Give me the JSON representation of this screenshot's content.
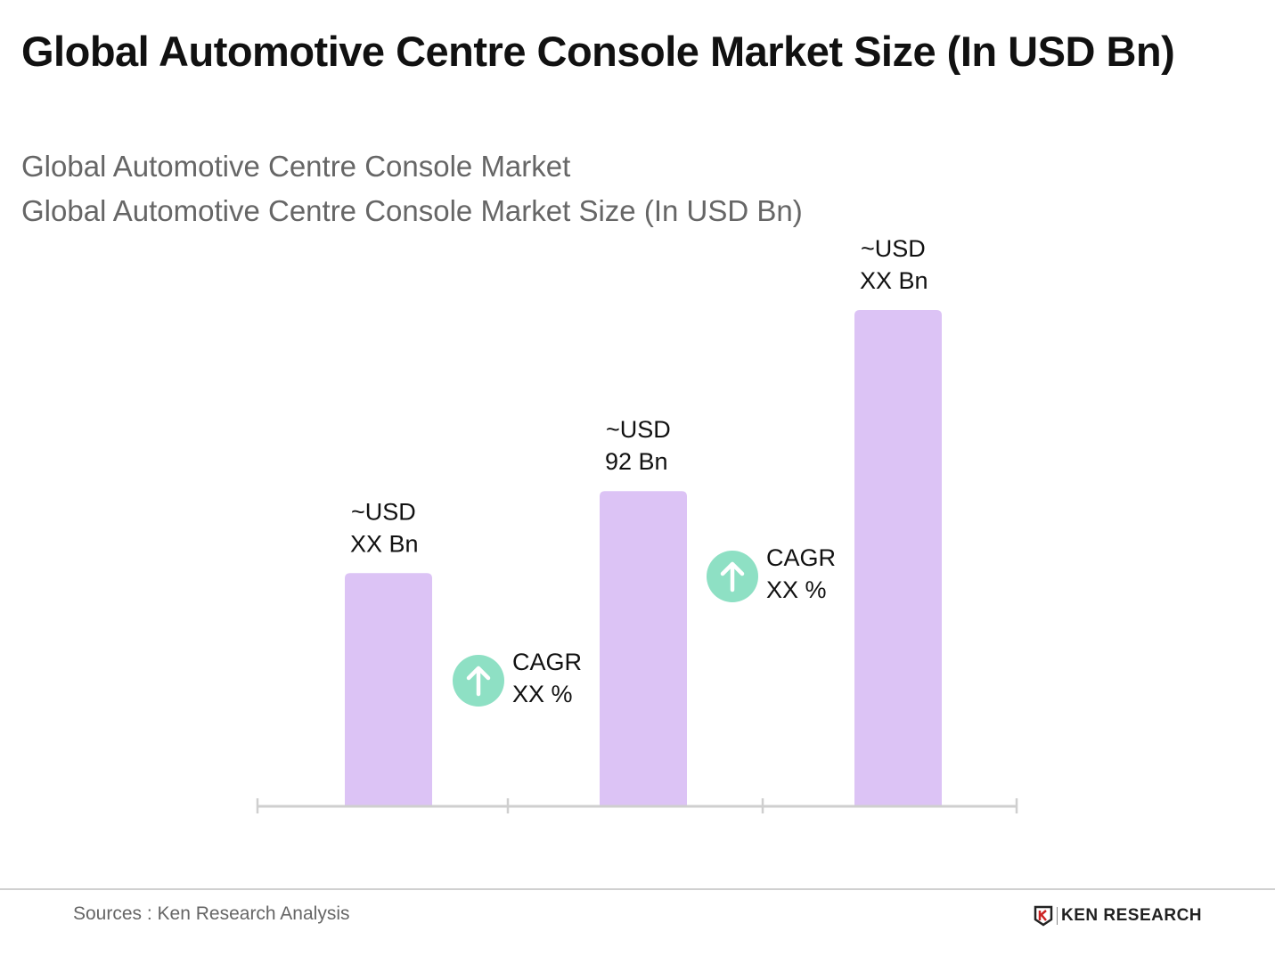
{
  "title": "Global Automotive Centre Console Market Size (In USD Bn)",
  "subtitle_1": "Global Automotive Centre Console Market",
  "subtitle_2": "Global Automotive Centre Console Market Size (In USD Bn)",
  "chart_data": {
    "type": "bar",
    "categories": [
      "",
      "",
      ""
    ],
    "values": [
      68,
      92,
      145
    ],
    "data_labels": [
      [
        "~USD",
        "XX Bn"
      ],
      [
        "~USD",
        "92 Bn"
      ],
      [
        "~USD",
        "XX Bn"
      ]
    ],
    "annotations": [
      {
        "label": [
          "CAGR",
          "XX %"
        ],
        "icon": "arrow-up-icon"
      },
      {
        "label": [
          "CAGR",
          "XX %"
        ],
        "icon": "arrow-up-icon"
      }
    ],
    "ylim": [
      0,
      145
    ],
    "grid": false,
    "bar_color": "#dcc3f5",
    "cagr_color": "#8ee0c4",
    "axis_color": "#cfcfcf"
  },
  "footer": {
    "source": "Sources : Ken Research Analysis",
    "logo": "KEN RESEARCH"
  }
}
